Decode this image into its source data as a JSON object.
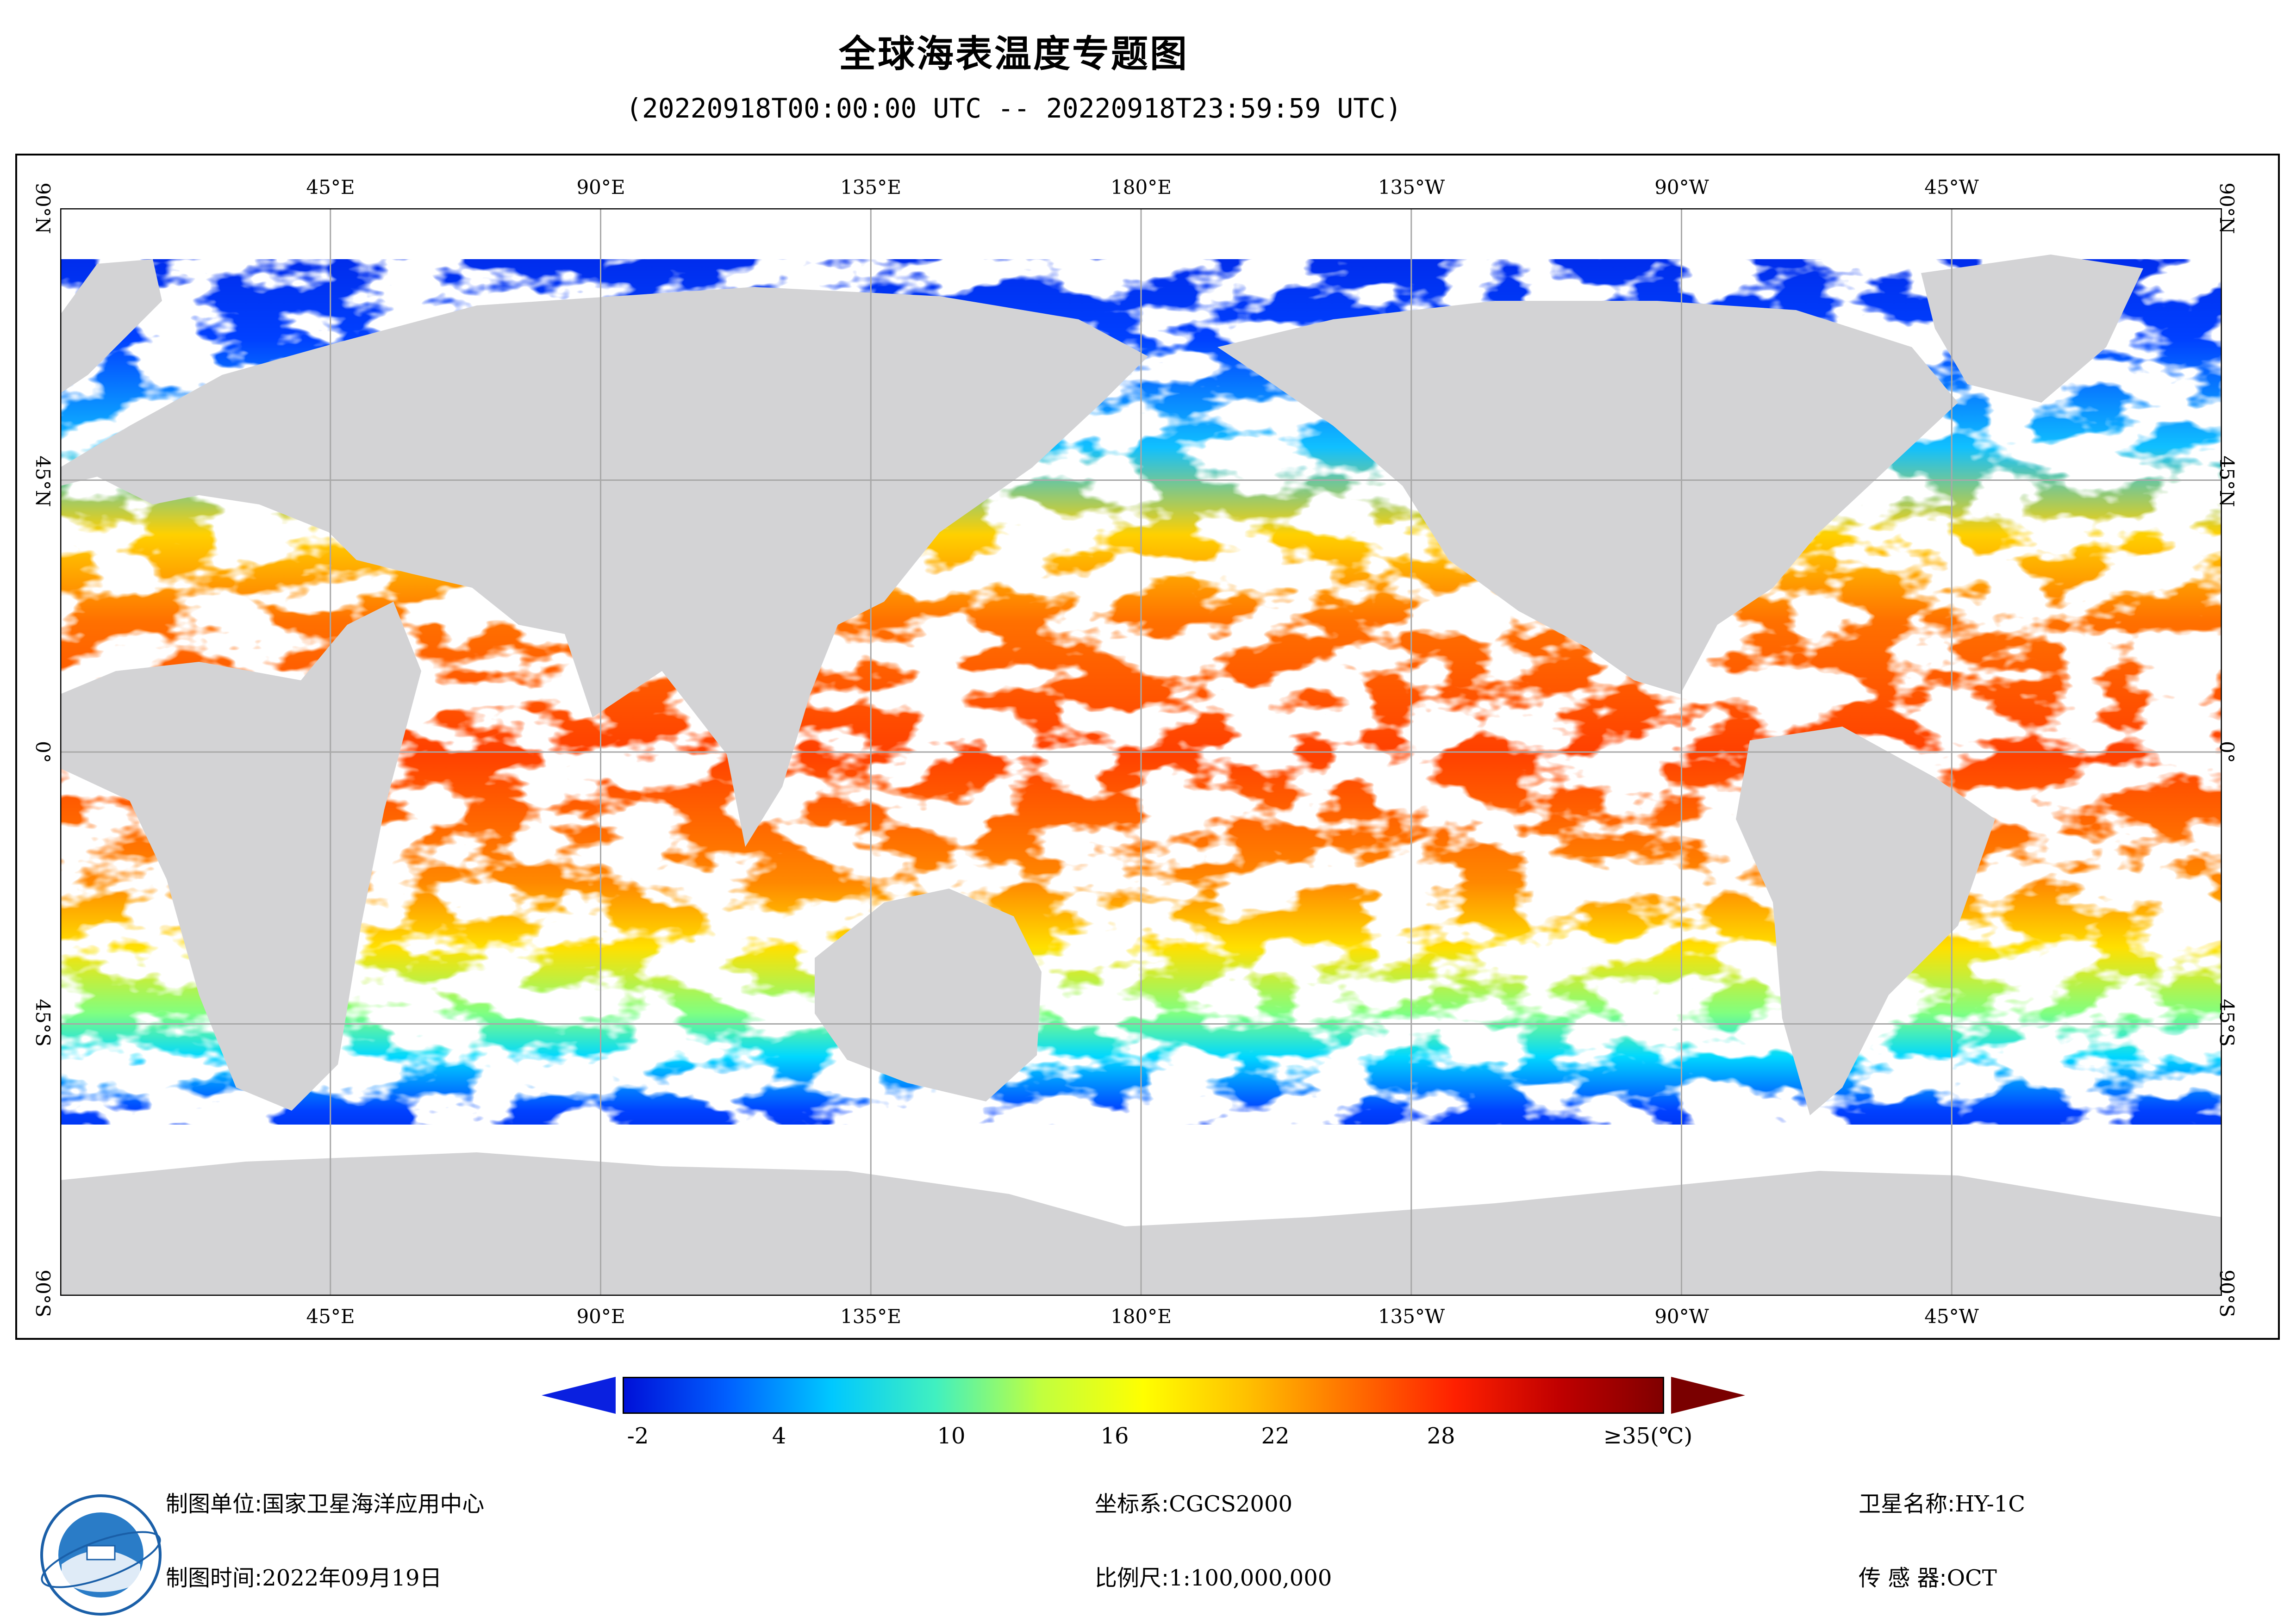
{
  "title": "全球海表温度专题图",
  "subtitle": "(20220918T00:00:00 UTC -- 20220918T23:59:59 UTC)",
  "map": {
    "lon_labels": [
      "45°E",
      "90°E",
      "135°E",
      "180°E",
      "135°W",
      "90°W",
      "45°W"
    ],
    "lat_labels": [
      "90°N",
      "45°N",
      "0°",
      "45°S",
      "90°S"
    ]
  },
  "legend": {
    "labels": [
      "-2",
      "4",
      "10",
      "16",
      "22",
      "28",
      "≥35(℃)"
    ],
    "colors": [
      "#0010d8",
      "#0060ff",
      "#00c8ff",
      "#40f0c0",
      "#c0ff40",
      "#ffff00",
      "#ffc000",
      "#ff7000",
      "#ff2000",
      "#c00000",
      "#800000"
    ],
    "under_color": "#0a20e0",
    "over_color": "#7a0000"
  },
  "info": {
    "agency_label": "制图单位:",
    "agency_value": "国家卫星海洋应用中心",
    "date_label": "制图时间:",
    "date_value": "2022年09月19日",
    "crs_label": "坐标系:",
    "crs_value": "CGCS2000",
    "scale_label": "比例尺:",
    "scale_value": "1:100,000,000",
    "satellite_label": "卫星名称:",
    "satellite_value": "HY-1C",
    "sensor_label": "传 感 器:",
    "sensor_value": "OCT"
  },
  "colors": {
    "land": "#d3d3d5",
    "cloud": "#ffffff",
    "grid": "#a8a8a8"
  }
}
